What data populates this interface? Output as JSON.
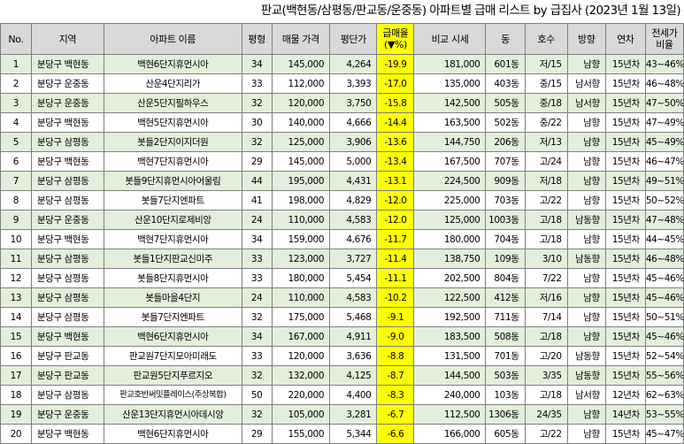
{
  "title": "판교(백현동/삼평동/판교동/운중동) 아파트별 급매 리스트 by 급집사 (2023년 1월 13일)",
  "colors": {
    "header_bg": "#d9d9d9",
    "stripe_green": "#e2efda",
    "highlight_yellow": "#ffff00",
    "border": "#7f7f7f"
  },
  "headers": {
    "no": "No.",
    "region": "지역",
    "apt": "아파트 이름",
    "pyeong": "평형",
    "price": "매물 가격",
    "per_pyeong": "평단가",
    "discount_a": "급매율",
    "discount_b": "(▼%)",
    "compare": "비교 시세",
    "dong": "동",
    "ho": "호수",
    "dir": "방향",
    "year": "연차",
    "jeonse_a": "전세가",
    "jeonse_b": "비율"
  },
  "rows": [
    {
      "no": "1",
      "region": "분당구 백현동",
      "apt": "백현6단지휴먼시아",
      "pyeong": "34",
      "price": "145,000",
      "per_pyeong": "4,264",
      "discount": "-19.9",
      "compare": "181,000",
      "dong": "601동",
      "ho": "저/15",
      "dir": "남향",
      "year": "15년차",
      "jeonse": "43~46%"
    },
    {
      "no": "2",
      "region": "분당구 운중동",
      "apt": "산운4단지리가",
      "pyeong": "33",
      "price": "112,000",
      "per_pyeong": "3,393",
      "discount": "-17.0",
      "compare": "135,000",
      "dong": "403동",
      "ho": "중/15",
      "dir": "남서향",
      "year": "15년차",
      "jeonse": "46~48%"
    },
    {
      "no": "3",
      "region": "분당구 운중동",
      "apt": "산운5단지필하우스",
      "pyeong": "32",
      "price": "120,000",
      "per_pyeong": "3,750",
      "discount": "-15.8",
      "compare": "142,500",
      "dong": "505동",
      "ho": "중/18",
      "dir": "남서향",
      "year": "15년차",
      "jeonse": "47~50%"
    },
    {
      "no": "4",
      "region": "분당구 백현동",
      "apt": "백현5단지휴먼시아",
      "pyeong": "30",
      "price": "140,000",
      "per_pyeong": "4,666",
      "discount": "-14.4",
      "compare": "163,500",
      "dong": "502동",
      "ho": "중/22",
      "dir": "남향",
      "year": "15년차",
      "jeonse": "47~49%"
    },
    {
      "no": "5",
      "region": "분당구 삼평동",
      "apt": "봇들2단지이지더원",
      "pyeong": "32",
      "price": "125,000",
      "per_pyeong": "3,906",
      "discount": "-13.6",
      "compare": "144,750",
      "dong": "206동",
      "ho": "저/13",
      "dir": "남향",
      "year": "15년차",
      "jeonse": "45~49%"
    },
    {
      "no": "6",
      "region": "분당구 백현동",
      "apt": "백현7단지휴먼시아",
      "pyeong": "29",
      "price": "145,000",
      "per_pyeong": "5,000",
      "discount": "-13.4",
      "compare": "167,500",
      "dong": "707동",
      "ho": "고/24",
      "dir": "남향",
      "year": "15년차",
      "jeonse": "46~47%"
    },
    {
      "no": "7",
      "region": "분당구 삼평동",
      "apt": "봇들9단지휴먼시아어울림",
      "pyeong": "44",
      "price": "195,000",
      "per_pyeong": "4,431",
      "discount": "-13.1",
      "compare": "224,500",
      "dong": "909동",
      "ho": "저/18",
      "dir": "남향",
      "year": "15년차",
      "jeonse": "49~51%"
    },
    {
      "no": "8",
      "region": "분당구 삼평동",
      "apt": "봇들7단지엔파트",
      "pyeong": "41",
      "price": "198,000",
      "per_pyeong": "4,829",
      "discount": "-12.0",
      "compare": "225,000",
      "dong": "703동",
      "ho": "고/22",
      "dir": "남향",
      "year": "15년차",
      "jeonse": "50~52%"
    },
    {
      "no": "9",
      "region": "분당구 운중동",
      "apt": "산운10단지로제비앙",
      "pyeong": "24",
      "price": "110,000",
      "per_pyeong": "4,583",
      "discount": "-12.0",
      "compare": "125,000",
      "dong": "1003동",
      "ho": "고/18",
      "dir": "남동향",
      "year": "15년차",
      "jeonse": "47~48%"
    },
    {
      "no": "10",
      "region": "분당구 백현동",
      "apt": "백현7단지휴먼시아",
      "pyeong": "34",
      "price": "159,000",
      "per_pyeong": "4,676",
      "discount": "-11.7",
      "compare": "180,000",
      "dong": "704동",
      "ho": "고/18",
      "dir": "남향",
      "year": "15년차",
      "jeonse": "44~45%"
    },
    {
      "no": "11",
      "region": "분당구 삼평동",
      "apt": "봇들1단지판교신미주",
      "pyeong": "33",
      "price": "123,000",
      "per_pyeong": "3,727",
      "discount": "-11.4",
      "compare": "138,750",
      "dong": "109동",
      "ho": "3/10",
      "dir": "남동향",
      "year": "15년차",
      "jeonse": "46~48%"
    },
    {
      "no": "12",
      "region": "분당구 삼평동",
      "apt": "봇들8단지휴먼시아",
      "pyeong": "33",
      "price": "180,000",
      "per_pyeong": "5,454",
      "discount": "-11.1",
      "compare": "202,500",
      "dong": "804동",
      "ho": "7/22",
      "dir": "남향",
      "year": "15년차",
      "jeonse": "45~46%"
    },
    {
      "no": "13",
      "region": "분당구 삼평동",
      "apt": "봇들마을4단지",
      "pyeong": "24",
      "price": "110,000",
      "per_pyeong": "4,583",
      "discount": "-10.2",
      "compare": "122,500",
      "dong": "412동",
      "ho": "저/16",
      "dir": "남향",
      "year": "15년차",
      "jeonse": "45~46%"
    },
    {
      "no": "14",
      "region": "분당구 삼평동",
      "apt": "봇들7단지엔파트",
      "pyeong": "32",
      "price": "175,000",
      "per_pyeong": "5,468",
      "discount": "-9.1",
      "compare": "192,500",
      "dong": "711동",
      "ho": "7/14",
      "dir": "남향",
      "year": "15년차",
      "jeonse": "50~51%"
    },
    {
      "no": "15",
      "region": "분당구 백현동",
      "apt": "백현6단지휴먼시아",
      "pyeong": "34",
      "price": "167,000",
      "per_pyeong": "4,911",
      "discount": "-9.0",
      "compare": "183,500",
      "dong": "508동",
      "ho": "고/18",
      "dir": "남향",
      "year": "15년차",
      "jeonse": "45~46%"
    },
    {
      "no": "16",
      "region": "분당구 판교동",
      "apt": "판교원7단지모아미래도",
      "pyeong": "33",
      "price": "120,000",
      "per_pyeong": "3,636",
      "discount": "-8.8",
      "compare": "131,500",
      "dong": "701동",
      "ho": "고/20",
      "dir": "남동향",
      "year": "15년차",
      "jeonse": "52~54%"
    },
    {
      "no": "17",
      "region": "분당구 판교동",
      "apt": "판교원5단지푸르지오",
      "pyeong": "32",
      "price": "132,000",
      "per_pyeong": "4,125",
      "discount": "-8.7",
      "compare": "144,500",
      "dong": "503동",
      "ho": "3/35",
      "dir": "남동향",
      "year": "15년차",
      "jeonse": "55~56%"
    },
    {
      "no": "18",
      "region": "분당구 삼평동",
      "apt": "판교호반써밋플레이스(주상복합)",
      "pyeong": "50",
      "price": "220,000",
      "per_pyeong": "4,400",
      "discount": "-8.3",
      "compare": "240,000",
      "dong": "103동",
      "ho": "고/18",
      "dir": "남서향",
      "year": "12년차",
      "jeonse": "62~63%"
    },
    {
      "no": "19",
      "region": "분당구 운중동",
      "apt": "산운13단지휴먼시아데시앙",
      "pyeong": "32",
      "price": "105,000",
      "per_pyeong": "3,281",
      "discount": "-6.7",
      "compare": "112,500",
      "dong": "1306동",
      "ho": "24/35",
      "dir": "남향",
      "year": "14년차",
      "jeonse": "53~55%"
    },
    {
      "no": "20",
      "region": "분당구 백현동",
      "apt": "백현6단지휴먼시아",
      "pyeong": "29",
      "price": "155,000",
      "per_pyeong": "5,344",
      "discount": "-6.6",
      "compare": "166,000",
      "dong": "605동",
      "ho": "고/22",
      "dir": "남향",
      "year": "15년차",
      "jeonse": "45~47%"
    }
  ]
}
